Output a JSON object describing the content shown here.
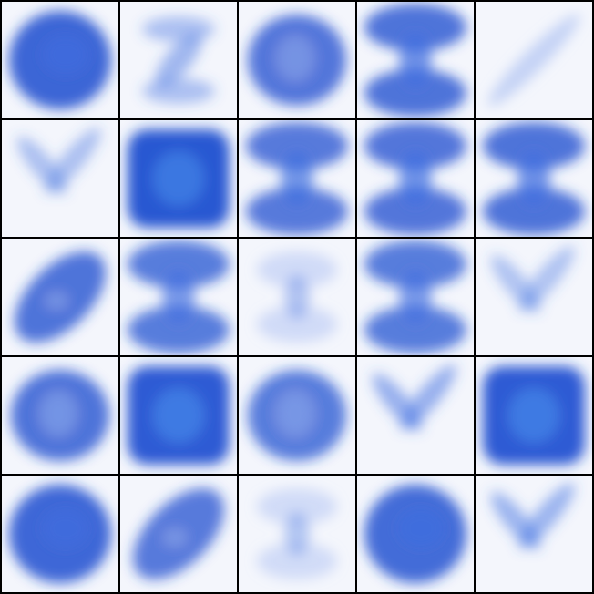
{
  "grid": {
    "rows": 5,
    "cols": 5,
    "background_color": "#000000",
    "palette": {
      "paper": "#f4f6fc",
      "deep": "#1f4fd0",
      "mid": "#3f6fe0",
      "light": "#9bb2ef",
      "glint": "#4fa0f5"
    },
    "tiles": [
      {
        "motif": "dense-blob",
        "intensity": 0.92
      },
      {
        "motif": "z-shape",
        "intensity": 0.45
      },
      {
        "motif": "ring",
        "intensity": 0.8
      },
      {
        "motif": "hourglass",
        "intensity": 0.85
      },
      {
        "motif": "diagonal-stroke",
        "intensity": 0.4
      },
      {
        "motif": "zigzag",
        "intensity": 0.35
      },
      {
        "motif": "filled-square",
        "intensity": 1.0
      },
      {
        "motif": "hourglass",
        "intensity": 0.75
      },
      {
        "motif": "hourglass",
        "intensity": 0.8
      },
      {
        "motif": "hourglass",
        "intensity": 0.85
      },
      {
        "motif": "diagonal-blob",
        "intensity": 0.85
      },
      {
        "motif": "hourglass",
        "intensity": 0.7
      },
      {
        "motif": "faint-hourglass",
        "intensity": 0.35
      },
      {
        "motif": "hourglass",
        "intensity": 0.7
      },
      {
        "motif": "zigzag",
        "intensity": 0.3
      },
      {
        "motif": "ring",
        "intensity": 0.85
      },
      {
        "motif": "filled-square",
        "intensity": 0.95
      },
      {
        "motif": "ring",
        "intensity": 0.7
      },
      {
        "motif": "zigzag",
        "intensity": 0.75
      },
      {
        "motif": "filled-square",
        "intensity": 0.95
      },
      {
        "motif": "dense-blob",
        "intensity": 0.9
      },
      {
        "motif": "diagonal-blob",
        "intensity": 0.75
      },
      {
        "motif": "faint-hourglass",
        "intensity": 0.3
      },
      {
        "motif": "dense-blob",
        "intensity": 0.85
      },
      {
        "motif": "zigzag",
        "intensity": 0.65
      }
    ]
  }
}
